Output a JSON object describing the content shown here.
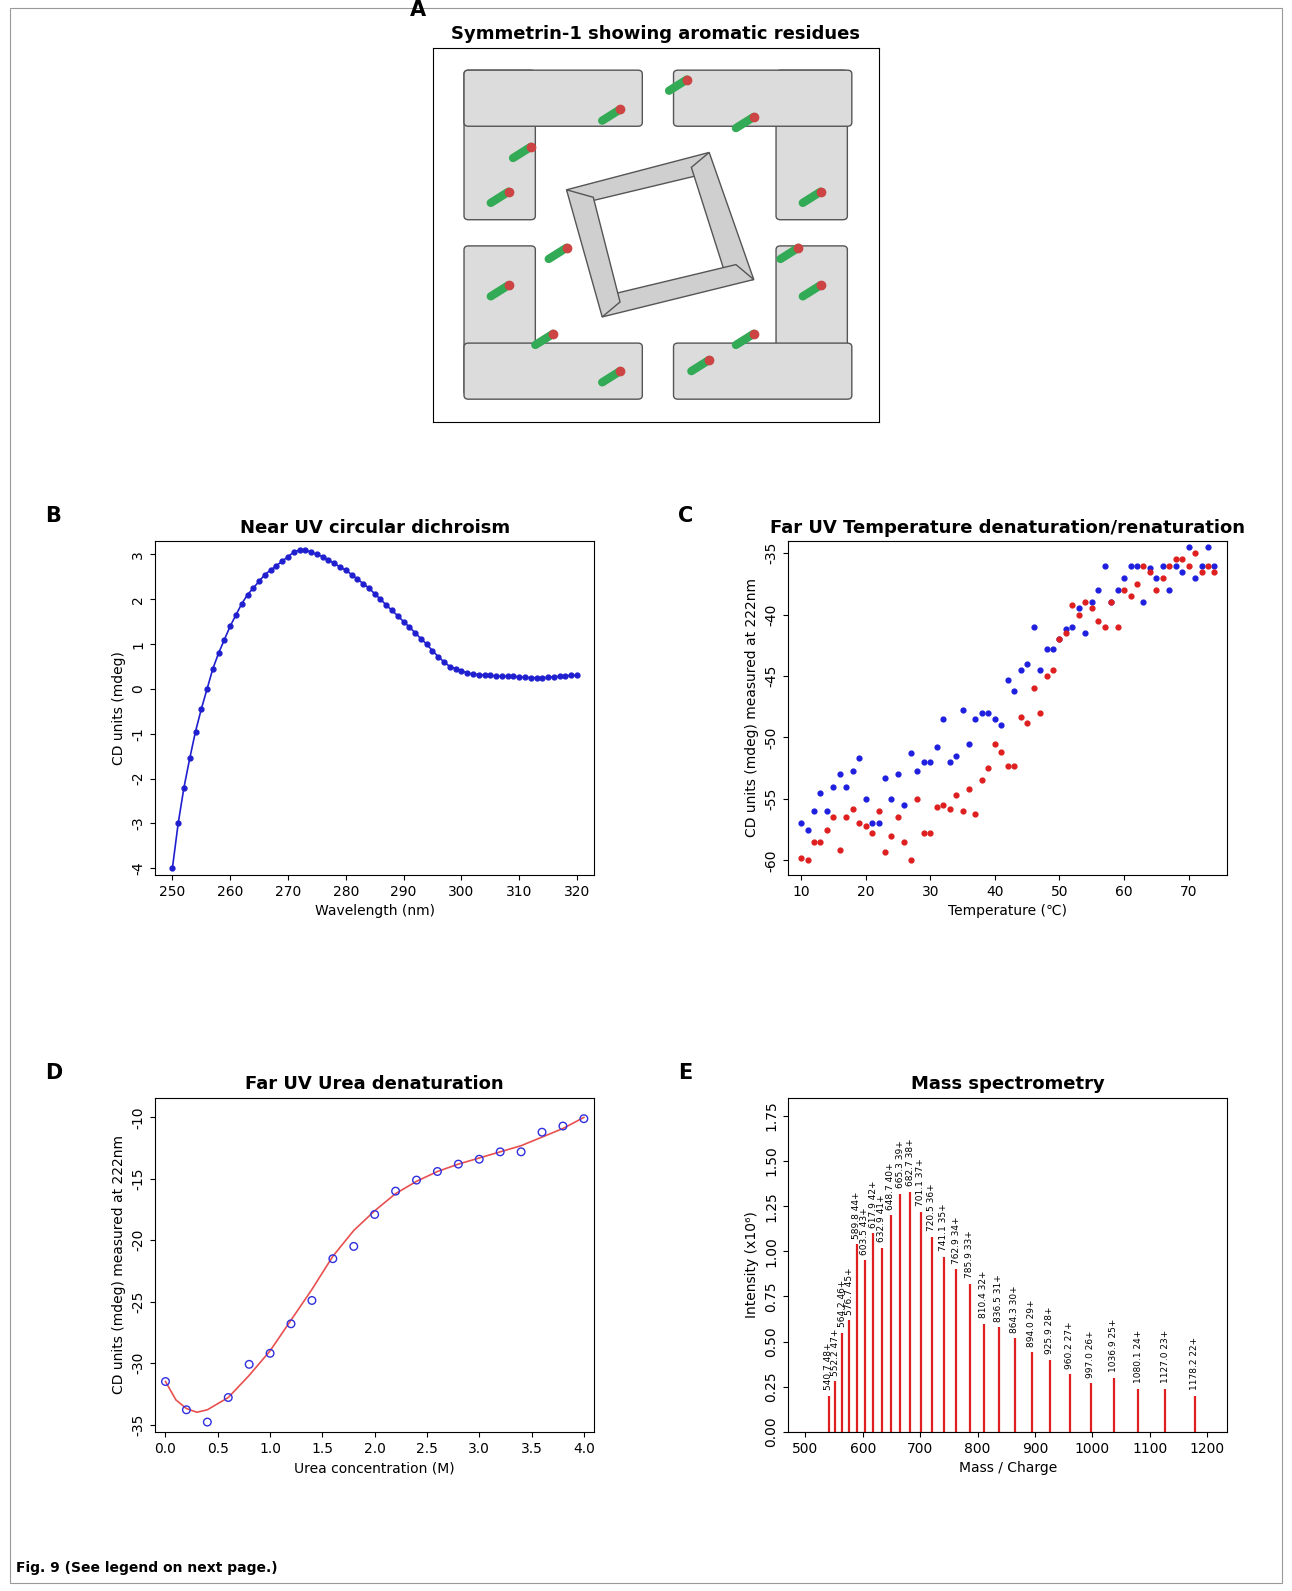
{
  "caption": "Fig. 9 (See legend on next page.)",
  "chart_data": [
    {
      "type": "image",
      "label": "A",
      "title": "Symmetrin-1 showing aromatic residues"
    },
    {
      "type": "line",
      "label": "B",
      "title": "Near UV circular dichroism",
      "x_label": "Wavelength (nm)",
      "y_label": "CD units (mdeg)",
      "marker": "o",
      "color": "#1f1fcf",
      "x": [
        250,
        251,
        252,
        253,
        254,
        255,
        256,
        257,
        258,
        259,
        260,
        261,
        262,
        263,
        264,
        265,
        266,
        267,
        268,
        269,
        270,
        271,
        272,
        273,
        274,
        275,
        276,
        277,
        278,
        279,
        280,
        281,
        282,
        283,
        284,
        285,
        286,
        287,
        288,
        289,
        290,
        291,
        292,
        293,
        294,
        295,
        296,
        297,
        298,
        299,
        300,
        301,
        302,
        303,
        304,
        305,
        306,
        307,
        308,
        309,
        310,
        311,
        312,
        313,
        314,
        315,
        316,
        317,
        318,
        319,
        320
      ],
      "values": [
        -4,
        -3,
        -2.2,
        -1.55,
        -0.95,
        -0.45,
        0,
        0.45,
        0.8,
        1.1,
        1.4,
        1.65,
        1.9,
        2.1,
        2.25,
        2.4,
        2.55,
        2.65,
        2.75,
        2.85,
        2.95,
        3.05,
        3.1,
        3.1,
        3.05,
        3.0,
        2.95,
        2.88,
        2.8,
        2.72,
        2.65,
        2.55,
        2.45,
        2.35,
        2.25,
        2.12,
        2.0,
        1.87,
        1.75,
        1.63,
        1.5,
        1.38,
        1.25,
        1.12,
        1.0,
        0.85,
        0.72,
        0.6,
        0.5,
        0.45,
        0.4,
        0.36,
        0.33,
        0.32,
        0.31,
        0.3,
        0.29,
        0.28,
        0.28,
        0.28,
        0.27,
        0.26,
        0.25,
        0.25,
        0.25,
        0.26,
        0.27,
        0.28,
        0.29,
        0.3,
        0.3
      ],
      "xlim": [
        247,
        323
      ],
      "xticks": [
        250,
        260,
        270,
        280,
        290,
        300,
        310,
        320
      ],
      "ylim": [
        -4.15,
        3.3
      ],
      "yticks": [
        -4,
        -3,
        -2,
        -1,
        0,
        1,
        2,
        3
      ]
    },
    {
      "type": "scatter",
      "label": "C",
      "title": "Far UV Temperature denaturation/renaturation",
      "x_label": "Temperature (℃)",
      "y_label": "CD units (mdeg) measured at 222nm",
      "series": [
        {
          "color": "#1f1fdf",
          "marker": "o",
          "x": [
            10,
            11,
            12,
            13,
            14,
            15,
            16,
            17,
            18,
            19,
            20,
            21,
            22,
            23,
            24,
            25,
            26,
            27,
            28,
            29,
            30,
            31,
            32,
            33,
            34,
            35,
            36,
            37,
            38,
            39,
            40,
            41,
            42,
            43,
            44,
            45,
            46,
            47,
            48,
            49,
            50,
            51,
            52,
            53,
            54,
            55,
            56,
            57,
            58,
            59,
            60,
            61,
            62,
            63,
            64,
            65,
            66,
            67,
            68,
            69,
            70,
            71,
            72,
            73,
            74
          ],
          "values": [
            -57,
            -57.5,
            -56,
            -54.5,
            -56,
            -54,
            -53,
            -54,
            -52.7,
            -51.7,
            -55,
            -57,
            -57,
            -53.3,
            -55,
            -53,
            -55.5,
            -51.3,
            -52.7,
            -52,
            -52,
            -50.8,
            -48.5,
            -52,
            -51.5,
            -47.8,
            -50.5,
            -48.5,
            -48,
            -48,
            -48.5,
            -49,
            -45.3,
            -46.2,
            -44.5,
            -44,
            -41,
            -44.5,
            -42.8,
            -42.8,
            -42,
            -41.2,
            -41,
            -39.5,
            -41.5,
            -39,
            -38,
            -36,
            -39,
            -38,
            -37,
            -36,
            -36,
            -39,
            -36.2,
            -37,
            -36,
            -38,
            -36,
            -36.5,
            -34.5,
            -37,
            -36,
            -34.5,
            -36
          ]
        },
        {
          "color": "#df1f1f",
          "marker": "o",
          "x": [
            10,
            11,
            12,
            13,
            14,
            15,
            16,
            17,
            18,
            19,
            20,
            21,
            22,
            23,
            24,
            25,
            26,
            27,
            28,
            29,
            30,
            31,
            32,
            33,
            34,
            35,
            36,
            37,
            38,
            39,
            40,
            41,
            42,
            43,
            44,
            45,
            46,
            47,
            48,
            49,
            50,
            51,
            52,
            53,
            54,
            55,
            56,
            57,
            58,
            59,
            60,
            61,
            62,
            63,
            64,
            65,
            66,
            67,
            68,
            69,
            70,
            71,
            72,
            73,
            74
          ],
          "values": [
            -59.8,
            -60,
            -58.5,
            -58.5,
            -57.5,
            -56.5,
            -59.2,
            -56.5,
            -55.8,
            -57,
            -57.2,
            -57.8,
            -56,
            -59.3,
            -58,
            -56.5,
            -58.5,
            -60,
            -55,
            -57.8,
            -57.8,
            -55.7,
            -55.5,
            -55.8,
            -54.7,
            -56,
            -54.2,
            -56.2,
            -53.5,
            -52.5,
            -50.5,
            -51.2,
            -52.3,
            -52.3,
            -48.3,
            -48.8,
            -46,
            -48,
            -45,
            -44.5,
            -42,
            -41.5,
            -39.2,
            -40,
            -39,
            -39.5,
            -40.5,
            -41,
            -39,
            -41,
            -38,
            -38.5,
            -37.5,
            -36,
            -36.5,
            -38,
            -37,
            -36,
            -35.5,
            -35.5,
            -36,
            -35,
            -36.5,
            -36,
            -36.5
          ]
        }
      ],
      "xlim": [
        8,
        76
      ],
      "xticks": [
        10,
        20,
        30,
        40,
        50,
        60,
        70
      ],
      "ylim": [
        -61.2,
        -34
      ],
      "yticks": [
        -60,
        -55,
        -50,
        -45,
        -40,
        -35
      ]
    },
    {
      "type": "scatter",
      "label": "D",
      "title": "Far UV Urea denaturation",
      "x_label": "Urea concentration (M)",
      "y_label": "CD units (mdeg) measured at 222nm",
      "series": [
        {
          "type": "scatter",
          "marker": "o",
          "color": "#2f2fdf",
          "x": [
            0,
            0.2,
            0.4,
            0.6,
            0.8,
            1.0,
            1.2,
            1.4,
            1.6,
            1.8,
            2.0,
            2.2,
            2.4,
            2.6,
            2.8,
            3.0,
            3.2,
            3.4,
            3.6,
            3.8,
            4.0
          ],
          "values": [
            -31.5,
            -33.8,
            -34.8,
            -32.8,
            -30.1,
            -29.2,
            -26.8,
            -24.9,
            -21.5,
            -20.5,
            -17.9,
            -16,
            -15.1,
            -14.4,
            -13.8,
            -13.4,
            -12.8,
            -12.8,
            -11.2,
            -10.7,
            -10.1
          ]
        },
        {
          "type": "line",
          "color": "#e85050",
          "x": [
            0,
            0.1,
            0.2,
            0.3,
            0.4,
            0.6,
            0.8,
            1.0,
            1.2,
            1.4,
            1.6,
            1.8,
            2.0,
            2.2,
            2.4,
            2.6,
            2.8,
            3.0,
            3.2,
            3.4,
            3.6,
            3.8,
            4.0
          ],
          "values": [
            -31.5,
            -33,
            -33.7,
            -34,
            -33.8,
            -32.8,
            -31,
            -29,
            -26.5,
            -24,
            -21.3,
            -19.2,
            -17.6,
            -16.2,
            -15.2,
            -14.4,
            -13.8,
            -13.3,
            -12.8,
            -12.3,
            -11.6,
            -10.9,
            -10
          ]
        }
      ],
      "xlim": [
        -0.1,
        4.1
      ],
      "xticks": [
        {
          "value": 0,
          "label": "0.0"
        },
        {
          "value": 0.5,
          "label": "0.5"
        },
        {
          "value": 1,
          "label": "1.0"
        },
        {
          "value": 1.5,
          "label": "1.5"
        },
        {
          "value": 2,
          "label": "2.0"
        },
        {
          "value": 2.5,
          "label": "2.5"
        },
        {
          "value": 3,
          "label": "3.0"
        },
        {
          "value": 3.5,
          "label": "3.5"
        },
        {
          "value": 4,
          "label": "4.0"
        }
      ],
      "ylim": [
        -35.6,
        -8.4
      ],
      "yticks": [
        -35,
        -30,
        -25,
        -20,
        -15,
        -10
      ]
    },
    {
      "type": "stem",
      "label": "E",
      "title": "Mass spectrometry",
      "x_label": "Mass / Charge",
      "y_label": "Intensity (x10⁶)",
      "color": "#e02020",
      "x": [
        540.7,
        552.2,
        564.2,
        576.7,
        589.8,
        603.5,
        617.9,
        632.9,
        648.7,
        665.3,
        682.7,
        701.1,
        720.5,
        741.1,
        762.9,
        785.9,
        810.4,
        836.5,
        864.3,
        894.0,
        925.9,
        960.2,
        997.0,
        1036.9,
        1080.1,
        1127.0,
        1178.2
      ],
      "values": [
        0.2,
        0.28,
        0.55,
        0.62,
        1.04,
        0.95,
        1.1,
        1.02,
        1.2,
        1.32,
        1.33,
        1.22,
        1.08,
        0.97,
        0.9,
        0.82,
        0.6,
        0.58,
        0.52,
        0.44,
        0.4,
        0.32,
        0.27,
        0.3,
        0.24,
        0.24,
        0.2
      ],
      "annotations": [
        "540.7 48+",
        "552.2 47+",
        "564.2 46+",
        "576.7 45+",
        "589.8 44+",
        "603.5 43+",
        "617.9 42+",
        "632.9 41+",
        "648.7 40+",
        "665.3 39+",
        "682.7 38+",
        "701.1 37+",
        "720.5 36+",
        "741.1 35+",
        "762.9 34+",
        "785.9 33+",
        "810.4 32+",
        "836.5 31+",
        "864.3 30+",
        "894.0 29+",
        "925.9 28+",
        "960.2 27+",
        "997.0 26+",
        "1036.9 25+",
        "1080.1 24+",
        "1127.0 23+",
        "1178.2 22+"
      ],
      "xlim": [
        470,
        1235
      ],
      "xticks": [
        500,
        600,
        700,
        800,
        900,
        1000,
        1100,
        1200
      ],
      "ylim": [
        0,
        1.85
      ],
      "yticks": [
        {
          "value": 0,
          "label": "0.00"
        },
        {
          "value": 0.25,
          "label": "0.25"
        },
        {
          "value": 0.5,
          "label": "0.50"
        },
        {
          "value": 0.75,
          "label": "0.75"
        },
        {
          "value": 1.0,
          "label": "1.00"
        },
        {
          "value": 1.25,
          "label": "1.25"
        },
        {
          "value": 1.5,
          "label": "1.50"
        },
        {
          "value": 1.75,
          "label": "1.75"
        }
      ]
    }
  ]
}
